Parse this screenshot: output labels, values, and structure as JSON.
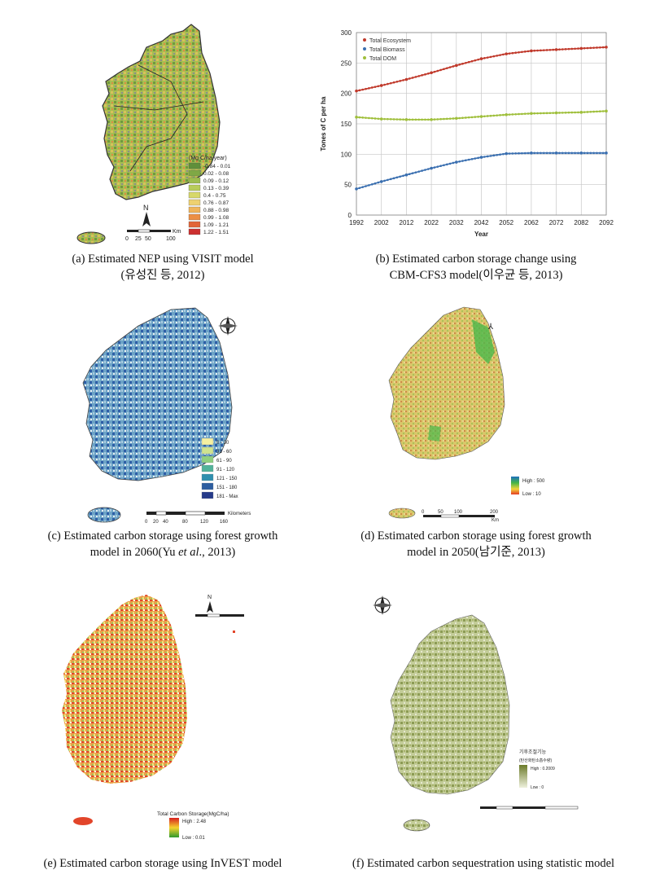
{
  "panels": {
    "a": {
      "caption_line1": "(a)  Estimated  NEP  using  VISIT  model",
      "caption_line2": "(유성진  등,  2012)",
      "legend_title": "(Mg C/ha year)",
      "legend": [
        {
          "label": "-0.84 - 0.01",
          "color": "#5f8f3a"
        },
        {
          "label": "0.02 - 0.08",
          "color": "#7fa845"
        },
        {
          "label": "0.09 - 0.12",
          "color": "#9cbc4e"
        },
        {
          "label": "0.13 - 0.39",
          "color": "#b8cc5a"
        },
        {
          "label": "0.4 - 0.75",
          "color": "#d7d86a"
        },
        {
          "label": "0.76 - 0.87",
          "color": "#eed170"
        },
        {
          "label": "0.88 - 0.98",
          "color": "#f0b45a"
        },
        {
          "label": "0.99 - 1.08",
          "color": "#ec8f45"
        },
        {
          "label": "1.09 - 1.21",
          "color": "#e26438"
        },
        {
          "label": "1.22 - 1.51",
          "color": "#cc3030"
        }
      ],
      "north": "N",
      "scale": [
        "0",
        "25",
        "50",
        "100"
      ],
      "scale_unit": "Km"
    },
    "b": {
      "caption_line1": "(b)  Estimated  carbon  storage  change  using",
      "caption_line2": "CBM-CFS3  model(이우균  등,  2013)"
    },
    "c": {
      "caption_line1": "(c)  Estimated  carbon  storage  using  forest  growth",
      "caption_line2_pre": "model  in  2060(Yu ",
      "caption_line2_em": "et al",
      "caption_line2_post": "., 2013)",
      "legend": [
        {
          "label": "0 - 30",
          "color": "#f6f0a0"
        },
        {
          "label": "31 - 60",
          "color": "#cfe38f"
        },
        {
          "label": "61 - 90",
          "color": "#8fcf7f"
        },
        {
          "label": "91 - 120",
          "color": "#52b39a"
        },
        {
          "label": "121 - 150",
          "color": "#2f8fae"
        },
        {
          "label": "151 - 180",
          "color": "#2d5da0"
        },
        {
          "label": "181 - Max",
          "color": "#263b8a"
        }
      ],
      "scale": [
        "0",
        "20",
        "40",
        "80",
        "120",
        "160"
      ],
      "scale_unit": "Kilometers"
    },
    "d": {
      "caption_line1": "(d)  Estimated  carbon  storage  using  forest  growth",
      "caption_line2": "model  in  2050(남기준,  2013)",
      "legend_high": "High : 500",
      "legend_low": "Low : 10",
      "scale": [
        "0",
        "50",
        "100",
        "200"
      ],
      "scale_unit": "Km"
    },
    "e": {
      "caption_line1": "(e)  Estimated  carbon  storage  using  InVEST  model",
      "legend_title": "Total Carbon Storage(MgC/ha)",
      "legend_high": "High : 2.48",
      "legend_low": "Low : 0.01",
      "north": "N"
    },
    "f": {
      "caption_line1": "(f)  Estimated  carbon  sequestration  using  statistic  model",
      "legend_title": "기후조절기능",
      "legend_subtitle": "(탄산화탄소흡수량)",
      "legend_high": "High : 0.2009",
      "legend_low": "Low : 0"
    }
  },
  "chart_data": {
    "type": "line",
    "title": "",
    "xlabel": "Year",
    "ylabel": "Tones of C  per ha",
    "xlim": [
      1992,
      2092
    ],
    "ylim": [
      0,
      300
    ],
    "xticks": [
      1992,
      2002,
      2012,
      2022,
      2032,
      2042,
      2052,
      2062,
      2072,
      2082,
      2092
    ],
    "yticks": [
      0,
      50,
      100,
      150,
      200,
      250,
      300
    ],
    "grid": true,
    "legend_position": "top-left",
    "x": [
      1992,
      2002,
      2012,
      2022,
      2032,
      2042,
      2052,
      2062,
      2072,
      2082,
      2092
    ],
    "series": [
      {
        "name": "Total Ecosystem",
        "color": "#c0392b",
        "marker": "square",
        "values": [
          204,
          213,
          223,
          234,
          246,
          257,
          265,
          270,
          272,
          274,
          276
        ]
      },
      {
        "name": "Total Biomass",
        "color": "#3a6fb0",
        "marker": "diamond",
        "values": [
          43,
          55,
          66,
          77,
          87,
          95,
          101,
          102,
          102,
          102,
          102
        ]
      },
      {
        "name": "Total DOM",
        "color": "#9fbf3b",
        "marker": "triangle",
        "values": [
          161,
          158,
          157,
          157,
          159,
          162,
          165,
          167,
          168,
          169,
          171
        ]
      }
    ]
  }
}
